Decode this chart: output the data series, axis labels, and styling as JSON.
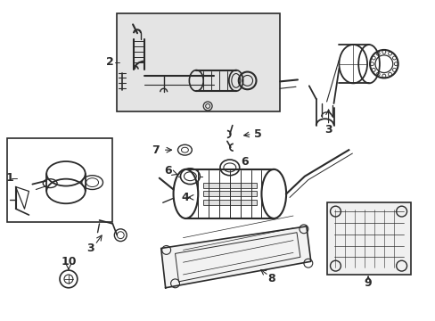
{
  "bg": "#ffffff",
  "lc": "#2a2a2a",
  "box_bg": "#e8e8e8",
  "fig_w": 4.89,
  "fig_h": 3.6,
  "dpi": 100
}
